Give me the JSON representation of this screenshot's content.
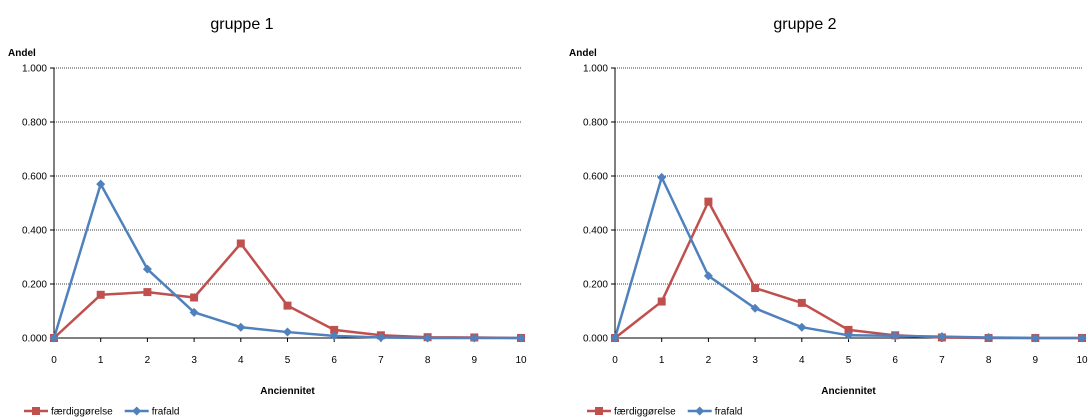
{
  "chart_data": [
    {
      "type": "line",
      "title": "gruppe 1",
      "xlabel": "Anciennitet",
      "ylabel": "Andel",
      "x": [
        0,
        1,
        2,
        3,
        4,
        5,
        6,
        7,
        8,
        9,
        10
      ],
      "ylim": [
        0,
        1
      ],
      "yticks": [
        "0.000",
        "0.200",
        "0.400",
        "0.600",
        "0.800",
        "1.000"
      ],
      "grid": true,
      "legend_position": "bottom-left",
      "series": [
        {
          "name": "færdiggørelse",
          "color": "#C0504D",
          "marker": "square",
          "values": [
            0.0,
            0.16,
            0.17,
            0.15,
            0.35,
            0.12,
            0.03,
            0.01,
            0.003,
            0.002,
            0.0
          ]
        },
        {
          "name": "frafald",
          "color": "#4F81BD",
          "marker": "diamond",
          "values": [
            0.0,
            0.57,
            0.255,
            0.095,
            0.04,
            0.022,
            0.008,
            0.002,
            0.0,
            0.0,
            0.0
          ]
        }
      ]
    },
    {
      "type": "line",
      "title": "gruppe 2",
      "xlabel": "Anciennitet",
      "ylabel": "Andel",
      "x": [
        0,
        1,
        2,
        3,
        4,
        5,
        6,
        7,
        8,
        9,
        10
      ],
      "ylim": [
        0,
        1
      ],
      "yticks": [
        "0.000",
        "0.200",
        "0.400",
        "0.600",
        "0.800",
        "1.000"
      ],
      "grid": true,
      "legend_position": "bottom-left",
      "series": [
        {
          "name": "færdiggørelse",
          "color": "#C0504D",
          "marker": "square",
          "values": [
            0.0,
            0.135,
            0.505,
            0.185,
            0.13,
            0.03,
            0.01,
            0.002,
            0.0,
            0.0,
            0.0
          ]
        },
        {
          "name": "frafald",
          "color": "#4F81BD",
          "marker": "diamond",
          "values": [
            0.0,
            0.595,
            0.23,
            0.11,
            0.04,
            0.01,
            0.008,
            0.005,
            0.002,
            0.0,
            0.0
          ]
        }
      ]
    }
  ]
}
